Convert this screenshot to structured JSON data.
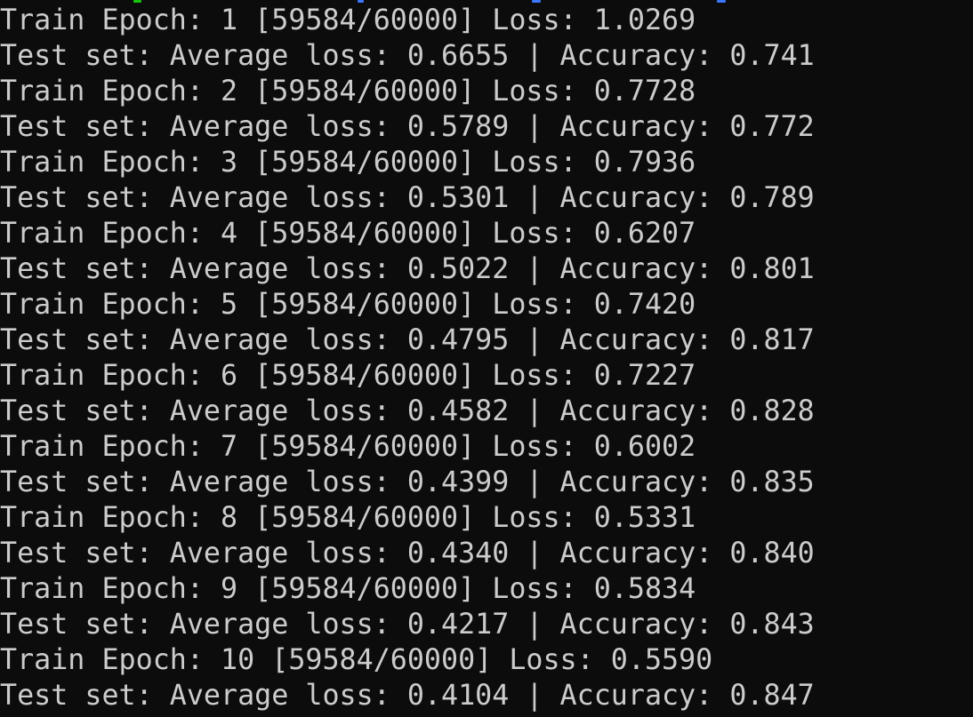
{
  "terminal": {
    "colors": {
      "background": "#0c0c0c",
      "text": "#cccccc",
      "artifact_green": "#16c60c",
      "artifact_blue": "#3b78ff"
    },
    "lines": [
      "Train Epoch: 1 [59584/60000] Loss: 1.0269",
      "Test set: Average loss: 0.6655 | Accuracy: 0.741",
      "Train Epoch: 2 [59584/60000] Loss: 0.7728",
      "Test set: Average loss: 0.5789 | Accuracy: 0.772",
      "Train Epoch: 3 [59584/60000] Loss: 0.7936",
      "Test set: Average loss: 0.5301 | Accuracy: 0.789",
      "Train Epoch: 4 [59584/60000] Loss: 0.6207",
      "Test set: Average loss: 0.5022 | Accuracy: 0.801",
      "Train Epoch: 5 [59584/60000] Loss: 0.7420",
      "Test set: Average loss: 0.4795 | Accuracy: 0.817",
      "Train Epoch: 6 [59584/60000] Loss: 0.7227",
      "Test set: Average loss: 0.4582 | Accuracy: 0.828",
      "Train Epoch: 7 [59584/60000] Loss: 0.6002",
      "Test set: Average loss: 0.4399 | Accuracy: 0.835",
      "Train Epoch: 8 [59584/60000] Loss: 0.5331",
      "Test set: Average loss: 0.4340 | Accuracy: 0.840",
      "Train Epoch: 9 [59584/60000] Loss: 0.5834",
      "Test set: Average loss: 0.4217 | Accuracy: 0.843",
      "Train Epoch: 10 [59584/60000] Loss: 0.5590",
      "Test set: Average loss: 0.4104 | Accuracy: 0.847"
    ]
  }
}
